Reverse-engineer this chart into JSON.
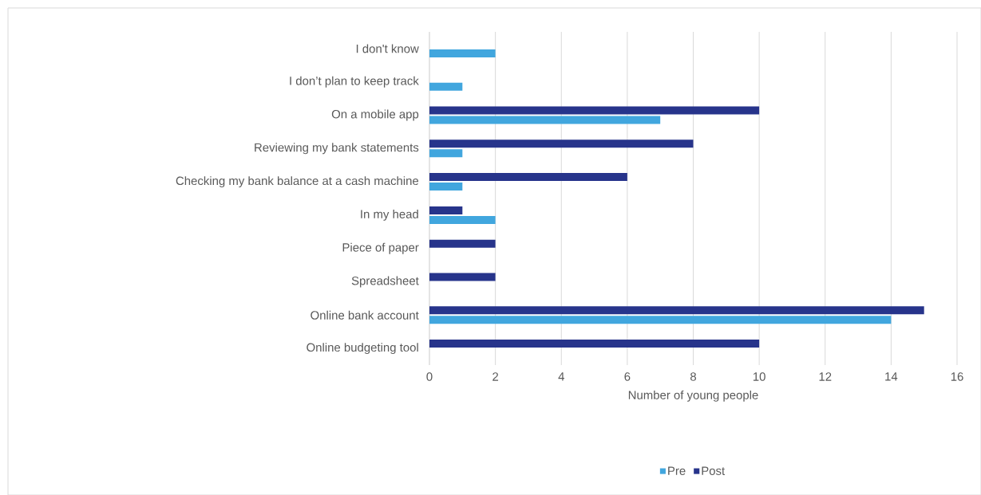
{
  "chart_data": {
    "type": "bar",
    "orientation": "horizontal",
    "xlabel": "Number of young people",
    "categories": [
      "I don't know",
      "I don’t plan to keep track",
      "On a mobile app",
      "Reviewing my bank statements",
      "Checking my bank balance at a cash machine",
      "In my head",
      "Piece of paper",
      "Spreadsheet",
      "Online bank account",
      "Online budgeting tool"
    ],
    "series": [
      {
        "name": "Pre",
        "color": "#41a6de",
        "values": [
          2,
          1,
          7,
          1,
          1,
          2,
          null,
          null,
          14,
          null
        ]
      },
      {
        "name": "Post",
        "color": "#27348b",
        "values": [
          null,
          null,
          10,
          8,
          6,
          1,
          2,
          2,
          15,
          10
        ]
      }
    ],
    "xlim": [
      0,
      16
    ],
    "xticks": [
      0,
      2,
      4,
      6,
      8,
      10,
      12,
      14,
      16
    ],
    "grid": "x",
    "legend": "bottom"
  }
}
